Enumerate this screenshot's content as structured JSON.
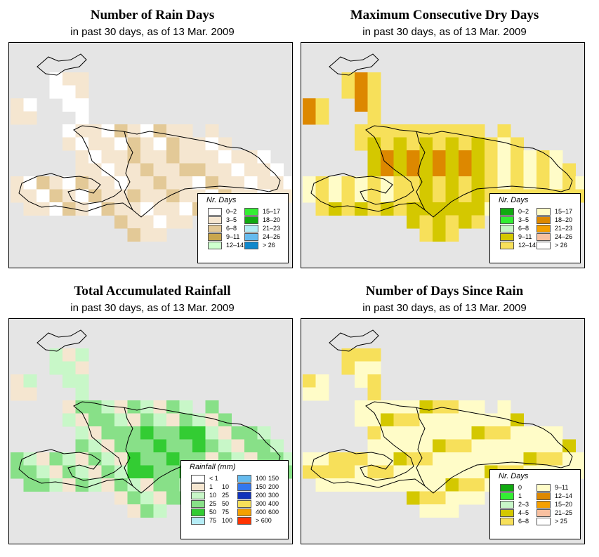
{
  "panels": [
    {
      "id": "rain_days",
      "title": "Number of Rain Days",
      "subtitle": "in past 30 days, as of  13 Mar. 2009",
      "legend": {
        "title": "Nr. Days",
        "items": [
          {
            "label": "0–2",
            "color": "#ffffff"
          },
          {
            "label": "3–5",
            "color": "#f5e6d0"
          },
          {
            "label": "6–8",
            "color": "#e3c997"
          },
          {
            "label": "9–11",
            "color": "#c9a64d"
          },
          {
            "label": "12–14",
            "color": "#cfffcf"
          },
          {
            "label": "15–17",
            "color": "#33ee33"
          },
          {
            "label": "18–20",
            "color": "#11aa11"
          },
          {
            "label": "21–23",
            "color": "#b5ecf5"
          },
          {
            "label": "24–26",
            "color": "#66bbee"
          },
          {
            "label": "> 26",
            "color": "#1188cc"
          }
        ]
      }
    },
    {
      "id": "max_dry",
      "title": "Maximum Consecutive Dry Days",
      "subtitle": "in past 30 days, as of  13 Mar. 2009",
      "legend": {
        "title": "Nr. Days",
        "items": [
          {
            "label": "0–2",
            "color": "#11aa11"
          },
          {
            "label": "3–5",
            "color": "#33ee33"
          },
          {
            "label": "6–8",
            "color": "#c8f7c8"
          },
          {
            "label": "9–11",
            "color": "#d4c800"
          },
          {
            "label": "12–14",
            "color": "#f7e05a"
          },
          {
            "label": "15–17",
            "color": "#fffcc8"
          },
          {
            "label": "18–20",
            "color": "#dd8800"
          },
          {
            "label": "21–23",
            "color": "#f5a000"
          },
          {
            "label": "24–26",
            "color": "#f8c0a0"
          },
          {
            "label": "> 26",
            "color": "#ffffff"
          }
        ]
      }
    },
    {
      "id": "rainfall",
      "title": "Total Accumulated Rainfall",
      "subtitle": "in past 30 days, as of  13 Mar. 2009",
      "legend": {
        "title": "Rainfall (mm)",
        "items": [
          {
            "lo": "< 1",
            "hi": "",
            "color": "#ffffff"
          },
          {
            "lo": "1",
            "hi": "10",
            "color": "#f5e6d0"
          },
          {
            "lo": "10",
            "hi": "25",
            "color": "#c8f7c8"
          },
          {
            "lo": "25",
            "hi": "50",
            "color": "#88e088"
          },
          {
            "lo": "50",
            "hi": "75",
            "color": "#33cc33"
          },
          {
            "lo": "75",
            "hi": "100",
            "color": "#b5ecf5"
          },
          {
            "lo": "100",
            "hi": "150",
            "color": "#66bbee"
          },
          {
            "lo": "150",
            "hi": "200",
            "color": "#3377ee"
          },
          {
            "lo": "200",
            "hi": "300",
            "color": "#1133bb"
          },
          {
            "lo": "300",
            "hi": "400",
            "color": "#f7e05a"
          },
          {
            "lo": "400",
            "hi": "600",
            "color": "#f5a000"
          },
          {
            "lo": "> 600",
            "hi": "",
            "color": "#ff3300"
          }
        ]
      }
    },
    {
      "id": "since_rain",
      "title": "Number of Days Since Rain",
      "subtitle": "in past 30 days, as of  13 Mar. 2009",
      "legend": {
        "title": "Nr. Days",
        "items": [
          {
            "label": "0",
            "color": "#11aa11"
          },
          {
            "label": "1",
            "color": "#33ee33"
          },
          {
            "label": "2–3",
            "color": "#c8f7c8"
          },
          {
            "label": "4–5",
            "color": "#d4c800"
          },
          {
            "label": "6–8",
            "color": "#f7e05a"
          },
          {
            "label": "9–11",
            "color": "#fffcc8"
          },
          {
            "label": "12–14",
            "color": "#dd8800"
          },
          {
            "label": "15–20",
            "color": "#f5a000"
          },
          {
            "label": "21–25",
            "color": "#f8c0a0"
          },
          {
            "label": "> 25",
            "color": "#ffffff"
          }
        ]
      }
    }
  ]
}
